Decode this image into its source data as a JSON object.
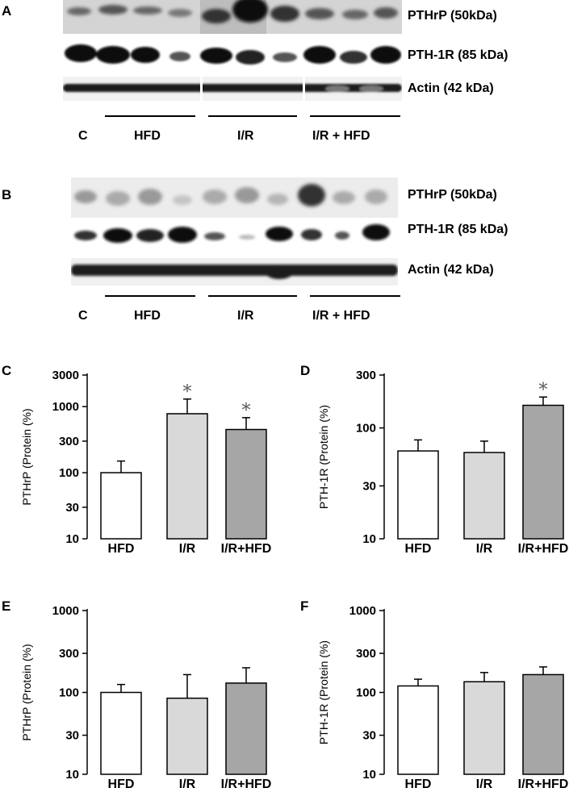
{
  "panels": {
    "A": "A",
    "B": "B",
    "C": "C",
    "D": "D",
    "E": "E",
    "F": "F"
  },
  "blots": [
    {
      "letter": "A",
      "bands": [
        "PTHrP (50kDa)",
        "PTH-1R (85 kDa)",
        "Actin (42 kDa)"
      ],
      "groups": {
        "control": "C",
        "hfd": "HFD",
        "ir": "I/R",
        "irhfd": "I/R + HFD"
      }
    },
    {
      "letter": "B",
      "bands": [
        "PTHrP (50kDa)",
        "PTH-1R (85 kDa)",
        "Actin (42 kDa)"
      ],
      "groups": {
        "control": "C",
        "hfd": "HFD",
        "ir": "I/R",
        "irhfd": "I/R + HFD"
      }
    }
  ],
  "chart_data": [
    {
      "panel": "C",
      "type": "bar",
      "yscale": "log",
      "ylabel": "PTHrP (Protein (%)",
      "ylim": [
        10,
        3000
      ],
      "yticks": [
        10,
        30,
        100,
        300,
        1000,
        3000
      ],
      "categories": [
        "HFD",
        "I/R",
        "I/R+HFD"
      ],
      "values": [
        100,
        780,
        450
      ],
      "errors": [
        150,
        1300,
        680
      ],
      "significant": [
        false,
        true,
        true
      ],
      "colors": [
        "#ffffff",
        "#d9d9d9",
        "#a6a6a6"
      ]
    },
    {
      "panel": "D",
      "type": "bar",
      "yscale": "log",
      "ylabel": "PTH-1R (Protein (%)",
      "ylim": [
        10,
        300
      ],
      "yticks": [
        10,
        30,
        100,
        300
      ],
      "categories": [
        "HFD",
        "I/R",
        "I/R+HFD"
      ],
      "values": [
        62,
        60,
        160
      ],
      "errors": [
        78,
        76,
        190
      ],
      "significant": [
        false,
        false,
        true
      ],
      "colors": [
        "#ffffff",
        "#d9d9d9",
        "#a6a6a6"
      ]
    },
    {
      "panel": "E",
      "type": "bar",
      "yscale": "log",
      "ylabel": "PTHrP (Protein (%)",
      "ylim": [
        10,
        1000
      ],
      "yticks": [
        10,
        30,
        100,
        300,
        1000
      ],
      "categories": [
        "HFD",
        "I/R",
        "I/R+HFD"
      ],
      "values": [
        100,
        85,
        130
      ],
      "errors": [
        125,
        165,
        200
      ],
      "significant": [
        false,
        false,
        false
      ],
      "colors": [
        "#ffffff",
        "#d9d9d9",
        "#a6a6a6"
      ]
    },
    {
      "panel": "F",
      "type": "bar",
      "yscale": "log",
      "ylabel": "PTH-1R (Protein (%)",
      "ylim": [
        10,
        1000
      ],
      "yticks": [
        10,
        30,
        100,
        300,
        1000
      ],
      "categories": [
        "HFD",
        "I/R",
        "I/R+HFD"
      ],
      "values": [
        120,
        135,
        165
      ],
      "errors": [
        145,
        175,
        205
      ],
      "significant": [
        false,
        false,
        false
      ],
      "colors": [
        "#ffffff",
        "#d9d9d9",
        "#a6a6a6"
      ]
    }
  ],
  "significance_marker": "*"
}
